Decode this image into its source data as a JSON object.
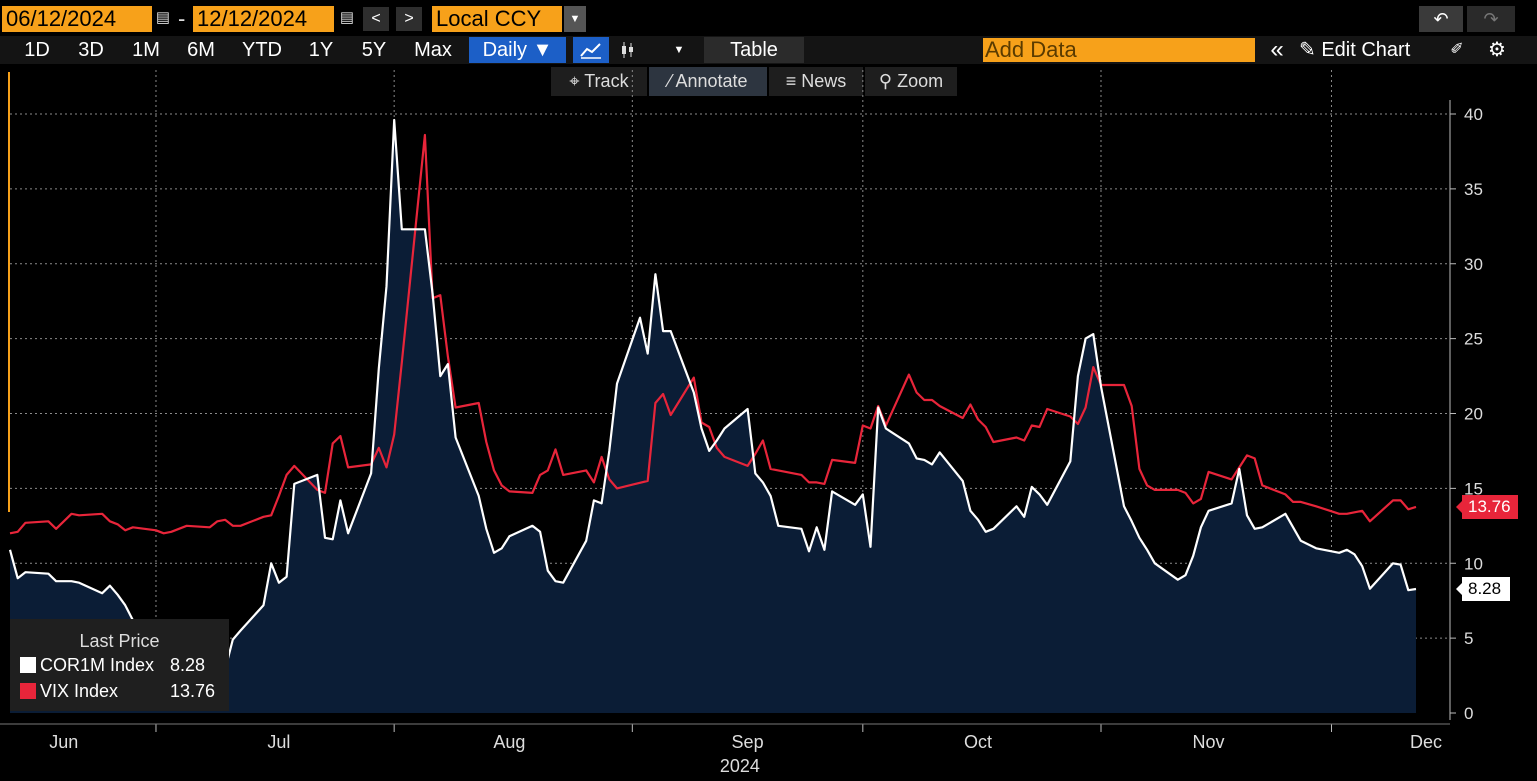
{
  "toolbar": {
    "start_date": "06/12/2024",
    "end_date": "12/12/2024",
    "date_separator": "-",
    "prev_label": "<",
    "next_label": ">",
    "currency": "Local CCY",
    "undo": "↶",
    "redo": "↷"
  },
  "ranges": [
    "1D",
    "3D",
    "1M",
    "6M",
    "YTD",
    "1Y",
    "5Y",
    "Max"
  ],
  "frequency": "Daily ▼",
  "table_label": "Table",
  "add_data_placeholder": "Add Data",
  "edit_chart_label": "Edit Chart",
  "collapse_label": "«",
  "tools": [
    {
      "icon": "track-icon",
      "glyph": "⌖",
      "label": "Track"
    },
    {
      "icon": "annotate-icon",
      "glyph": "⁄",
      "label": "Annotate"
    },
    {
      "icon": "news-icon",
      "glyph": "≡",
      "label": "News"
    },
    {
      "icon": "zoom-icon",
      "glyph": "⚲",
      "label": "Zoom"
    }
  ],
  "legend": {
    "title": "Last Price",
    "items": [
      {
        "name": "COR1M Index",
        "value": "8.28",
        "color": "#ffffff"
      },
      {
        "name": "VIX Index",
        "value": "13.76",
        "color": "#e8253a"
      }
    ]
  },
  "chart_data": {
    "type": "line",
    "title": "",
    "xlabel": "",
    "ylabel": "",
    "year_label": "2024",
    "ylim": [
      0,
      42
    ],
    "y_ticks": [
      0,
      5,
      10,
      15,
      20,
      25,
      30,
      35,
      40
    ],
    "x_month_labels": [
      {
        "label": "Jun",
        "date": "2024-06-19"
      },
      {
        "label": "Jul",
        "date": "2024-07-17"
      },
      {
        "label": "Aug",
        "date": "2024-08-16"
      },
      {
        "label": "Sep",
        "date": "2024-09-16"
      },
      {
        "label": "Oct",
        "date": "2024-10-16"
      },
      {
        "label": "Nov",
        "date": "2024-11-15"
      },
      {
        "label": "Dec",
        "date": "2024-12-12"
      }
    ],
    "x_range": [
      "2024-06-12",
      "2024-12-12"
    ],
    "grid": true,
    "legend_position": "bottom-left",
    "series": [
      {
        "name": "COR1M Index",
        "color": "#ffffff",
        "fill": "#0b1d36",
        "last_value": "8.28",
        "points": [
          [
            "2024-06-12",
            10.9
          ],
          [
            "2024-06-13",
            9.0
          ],
          [
            "2024-06-14",
            9.4
          ],
          [
            "2024-06-17",
            9.3
          ],
          [
            "2024-06-18",
            8.8
          ],
          [
            "2024-06-20",
            8.8
          ],
          [
            "2024-06-21",
            8.7
          ],
          [
            "2024-06-24",
            8.0
          ],
          [
            "2024-06-25",
            8.5
          ],
          [
            "2024-06-26",
            7.9
          ],
          [
            "2024-06-27",
            7.2
          ],
          [
            "2024-06-28",
            6.2
          ],
          [
            "2024-07-01",
            5.5
          ],
          [
            "2024-07-02",
            4.7
          ],
          [
            "2024-07-03",
            4.5
          ],
          [
            "2024-07-05",
            4.0
          ],
          [
            "2024-07-08",
            4.1
          ],
          [
            "2024-07-09",
            3.9
          ],
          [
            "2024-07-10",
            2.9
          ],
          [
            "2024-07-11",
            4.9
          ],
          [
            "2024-07-12",
            5.5
          ],
          [
            "2024-07-15",
            7.2
          ],
          [
            "2024-07-16",
            10.0
          ],
          [
            "2024-07-17",
            8.7
          ],
          [
            "2024-07-18",
            9.1
          ],
          [
            "2024-07-19",
            15.3
          ],
          [
            "2024-07-22",
            15.9
          ],
          [
            "2024-07-23",
            11.7
          ],
          [
            "2024-07-24",
            11.6
          ],
          [
            "2024-07-25",
            14.2
          ],
          [
            "2024-07-26",
            12.0
          ],
          [
            "2024-07-29",
            16.0
          ],
          [
            "2024-07-30",
            23.0
          ],
          [
            "2024-07-31",
            28.5
          ],
          [
            "2024-08-01",
            39.6
          ],
          [
            "2024-08-02",
            32.3
          ],
          [
            "2024-08-05",
            32.3
          ],
          [
            "2024-08-06",
            28.0
          ],
          [
            "2024-08-07",
            22.5
          ],
          [
            "2024-08-08",
            23.3
          ],
          [
            "2024-08-09",
            18.4
          ],
          [
            "2024-08-12",
            14.5
          ],
          [
            "2024-08-13",
            12.3
          ],
          [
            "2024-08-14",
            10.7
          ],
          [
            "2024-08-15",
            11.0
          ],
          [
            "2024-08-16",
            11.8
          ],
          [
            "2024-08-19",
            12.5
          ],
          [
            "2024-08-20",
            12.1
          ],
          [
            "2024-08-21",
            9.5
          ],
          [
            "2024-08-22",
            8.8
          ],
          [
            "2024-08-23",
            8.7
          ],
          [
            "2024-08-26",
            11.5
          ],
          [
            "2024-08-27",
            14.2
          ],
          [
            "2024-08-28",
            14.0
          ],
          [
            "2024-08-29",
            17.5
          ],
          [
            "2024-08-30",
            22.0
          ],
          [
            "2024-09-02",
            26.4
          ],
          [
            "2024-09-03",
            24.0
          ],
          [
            "2024-09-04",
            29.3
          ],
          [
            "2024-09-05",
            25.5
          ],
          [
            "2024-09-06",
            25.5
          ],
          [
            "2024-09-09",
            21.4
          ],
          [
            "2024-09-10",
            19.0
          ],
          [
            "2024-09-11",
            17.5
          ],
          [
            "2024-09-12",
            18.2
          ],
          [
            "2024-09-13",
            19.0
          ],
          [
            "2024-09-16",
            20.3
          ],
          [
            "2024-09-17",
            16.0
          ],
          [
            "2024-09-18",
            15.4
          ],
          [
            "2024-09-19",
            14.5
          ],
          [
            "2024-09-20",
            12.5
          ],
          [
            "2024-09-23",
            12.3
          ],
          [
            "2024-09-24",
            10.8
          ],
          [
            "2024-09-25",
            12.4
          ],
          [
            "2024-09-26",
            10.9
          ],
          [
            "2024-09-27",
            14.8
          ],
          [
            "2024-09-30",
            13.9
          ],
          [
            "2024-10-01",
            14.6
          ],
          [
            "2024-10-02",
            11.1
          ],
          [
            "2024-10-03",
            20.4
          ],
          [
            "2024-10-04",
            19.0
          ],
          [
            "2024-10-07",
            18.0
          ],
          [
            "2024-10-08",
            17.0
          ],
          [
            "2024-10-09",
            16.9
          ],
          [
            "2024-10-10",
            16.6
          ],
          [
            "2024-10-11",
            17.4
          ],
          [
            "2024-10-14",
            15.5
          ],
          [
            "2024-10-15",
            13.5
          ],
          [
            "2024-10-16",
            12.9
          ],
          [
            "2024-10-17",
            12.1
          ],
          [
            "2024-10-18",
            12.3
          ],
          [
            "2024-10-21",
            13.8
          ],
          [
            "2024-10-22",
            13.1
          ],
          [
            "2024-10-23",
            15.1
          ],
          [
            "2024-10-24",
            14.6
          ],
          [
            "2024-10-25",
            13.9
          ],
          [
            "2024-10-28",
            16.8
          ],
          [
            "2024-10-29",
            22.5
          ],
          [
            "2024-10-30",
            25.0
          ],
          [
            "2024-10-31",
            25.3
          ],
          [
            "2024-11-01",
            21.8
          ],
          [
            "2024-11-04",
            13.8
          ],
          [
            "2024-11-05",
            12.8
          ],
          [
            "2024-11-06",
            11.7
          ],
          [
            "2024-11-07",
            10.9
          ],
          [
            "2024-11-08",
            10.0
          ],
          [
            "2024-11-11",
            8.9
          ],
          [
            "2024-11-12",
            9.2
          ],
          [
            "2024-11-13",
            10.5
          ],
          [
            "2024-11-14",
            12.4
          ],
          [
            "2024-11-15",
            13.5
          ],
          [
            "2024-11-18",
            14.0
          ],
          [
            "2024-11-19",
            16.3
          ],
          [
            "2024-11-20",
            13.2
          ],
          [
            "2024-11-21",
            12.3
          ],
          [
            "2024-11-22",
            12.4
          ],
          [
            "2024-11-25",
            13.3
          ],
          [
            "2024-11-26",
            12.4
          ],
          [
            "2024-11-27",
            11.5
          ],
          [
            "2024-11-29",
            11.0
          ],
          [
            "2024-12-02",
            10.7
          ],
          [
            "2024-12-03",
            10.9
          ],
          [
            "2024-12-04",
            10.6
          ],
          [
            "2024-12-05",
            9.8
          ],
          [
            "2024-12-06",
            8.3
          ],
          [
            "2024-12-09",
            10.0
          ],
          [
            "2024-12-10",
            9.9
          ],
          [
            "2024-12-11",
            8.2
          ],
          [
            "2024-12-12",
            8.28
          ]
        ]
      },
      {
        "name": "VIX Index",
        "color": "#e8253a",
        "last_value": "13.76",
        "points": [
          [
            "2024-06-12",
            12.0
          ],
          [
            "2024-06-13",
            12.1
          ],
          [
            "2024-06-14",
            12.7
          ],
          [
            "2024-06-17",
            12.8
          ],
          [
            "2024-06-18",
            12.3
          ],
          [
            "2024-06-20",
            13.3
          ],
          [
            "2024-06-21",
            13.2
          ],
          [
            "2024-06-24",
            13.3
          ],
          [
            "2024-06-25",
            12.8
          ],
          [
            "2024-06-26",
            12.6
          ],
          [
            "2024-06-27",
            12.2
          ],
          [
            "2024-06-28",
            12.4
          ],
          [
            "2024-07-01",
            12.2
          ],
          [
            "2024-07-02",
            12.0
          ],
          [
            "2024-07-03",
            12.1
          ],
          [
            "2024-07-05",
            12.5
          ],
          [
            "2024-07-08",
            12.4
          ],
          [
            "2024-07-09",
            12.8
          ],
          [
            "2024-07-10",
            12.9
          ],
          [
            "2024-07-11",
            12.5
          ],
          [
            "2024-07-12",
            12.5
          ],
          [
            "2024-07-15",
            13.1
          ],
          [
            "2024-07-16",
            13.2
          ],
          [
            "2024-07-17",
            14.5
          ],
          [
            "2024-07-18",
            15.9
          ],
          [
            "2024-07-19",
            16.5
          ],
          [
            "2024-07-22",
            14.9
          ],
          [
            "2024-07-23",
            14.7
          ],
          [
            "2024-07-24",
            18.0
          ],
          [
            "2024-07-25",
            18.5
          ],
          [
            "2024-07-26",
            16.4
          ],
          [
            "2024-07-29",
            16.6
          ],
          [
            "2024-07-30",
            17.7
          ],
          [
            "2024-07-31",
            16.4
          ],
          [
            "2024-08-01",
            18.6
          ],
          [
            "2024-08-02",
            23.4
          ],
          [
            "2024-08-05",
            38.6
          ],
          [
            "2024-08-06",
            27.7
          ],
          [
            "2024-08-07",
            27.9
          ],
          [
            "2024-08-08",
            23.8
          ],
          [
            "2024-08-09",
            20.4
          ],
          [
            "2024-08-12",
            20.7
          ],
          [
            "2024-08-13",
            18.1
          ],
          [
            "2024-08-14",
            16.2
          ],
          [
            "2024-08-15",
            15.2
          ],
          [
            "2024-08-16",
            14.8
          ],
          [
            "2024-08-19",
            14.7
          ],
          [
            "2024-08-20",
            15.9
          ],
          [
            "2024-08-21",
            16.2
          ],
          [
            "2024-08-22",
            17.6
          ],
          [
            "2024-08-23",
            15.9
          ],
          [
            "2024-08-26",
            16.2
          ],
          [
            "2024-08-27",
            15.4
          ],
          [
            "2024-08-28",
            17.1
          ],
          [
            "2024-08-29",
            15.6
          ],
          [
            "2024-08-30",
            15.0
          ],
          [
            "2024-09-03",
            15.5
          ],
          [
            "2024-09-04",
            20.7
          ],
          [
            "2024-09-05",
            21.3
          ],
          [
            "2024-09-06",
            19.9
          ],
          [
            "2024-09-09",
            22.4
          ],
          [
            "2024-09-10",
            19.4
          ],
          [
            "2024-09-11",
            19.1
          ],
          [
            "2024-09-12",
            17.7
          ],
          [
            "2024-09-13",
            17.1
          ],
          [
            "2024-09-16",
            16.5
          ],
          [
            "2024-09-17",
            17.3
          ],
          [
            "2024-09-18",
            18.2
          ],
          [
            "2024-09-19",
            16.3
          ],
          [
            "2024-09-20",
            16.2
          ],
          [
            "2024-09-23",
            15.9
          ],
          [
            "2024-09-24",
            15.4
          ],
          [
            "2024-09-25",
            15.4
          ],
          [
            "2024-09-26",
            15.3
          ],
          [
            "2024-09-27",
            16.9
          ],
          [
            "2024-09-30",
            16.7
          ],
          [
            "2024-10-01",
            19.2
          ],
          [
            "2024-10-02",
            19.0
          ],
          [
            "2024-10-03",
            20.5
          ],
          [
            "2024-10-04",
            19.2
          ],
          [
            "2024-10-07",
            22.6
          ],
          [
            "2024-10-08",
            21.4
          ],
          [
            "2024-10-09",
            20.9
          ],
          [
            "2024-10-10",
            20.9
          ],
          [
            "2024-10-11",
            20.5
          ],
          [
            "2024-10-14",
            19.7
          ],
          [
            "2024-10-15",
            20.6
          ],
          [
            "2024-10-16",
            19.6
          ],
          [
            "2024-10-17",
            19.1
          ],
          [
            "2024-10-18",
            18.1
          ],
          [
            "2024-10-21",
            18.4
          ],
          [
            "2024-10-22",
            18.2
          ],
          [
            "2024-10-23",
            19.2
          ],
          [
            "2024-10-24",
            19.1
          ],
          [
            "2024-10-25",
            20.3
          ],
          [
            "2024-10-28",
            19.8
          ],
          [
            "2024-10-29",
            19.3
          ],
          [
            "2024-10-30",
            20.4
          ],
          [
            "2024-10-31",
            23.1
          ],
          [
            "2024-11-01",
            21.9
          ],
          [
            "2024-11-04",
            21.9
          ],
          [
            "2024-11-05",
            20.5
          ],
          [
            "2024-11-06",
            16.3
          ],
          [
            "2024-11-07",
            15.2
          ],
          [
            "2024-11-08",
            14.9
          ],
          [
            "2024-11-11",
            14.9
          ],
          [
            "2024-11-12",
            14.7
          ],
          [
            "2024-11-13",
            14.0
          ],
          [
            "2024-11-14",
            14.3
          ],
          [
            "2024-11-15",
            16.1
          ],
          [
            "2024-11-18",
            15.6
          ],
          [
            "2024-11-19",
            16.4
          ],
          [
            "2024-11-20",
            17.2
          ],
          [
            "2024-11-21",
            17.0
          ],
          [
            "2024-11-22",
            15.2
          ],
          [
            "2024-11-25",
            14.6
          ],
          [
            "2024-11-26",
            14.1
          ],
          [
            "2024-11-27",
            14.1
          ],
          [
            "2024-11-29",
            13.8
          ],
          [
            "2024-12-02",
            13.3
          ],
          [
            "2024-12-03",
            13.3
          ],
          [
            "2024-12-04",
            13.4
          ],
          [
            "2024-12-05",
            13.5
          ],
          [
            "2024-12-06",
            12.8
          ],
          [
            "2024-12-09",
            14.2
          ],
          [
            "2024-12-10",
            14.2
          ],
          [
            "2024-12-11",
            13.6
          ],
          [
            "2024-12-12",
            13.76
          ]
        ]
      }
    ]
  }
}
